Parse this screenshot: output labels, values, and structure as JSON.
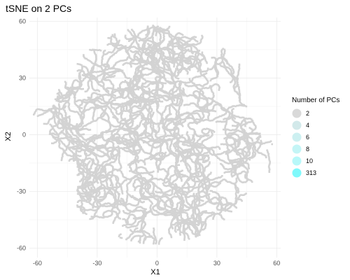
{
  "chart_data": {
    "type": "scatter",
    "title": "tSNE on 2 PCs",
    "xlabel": "X1",
    "ylabel": "X2",
    "xlim": [
      -64,
      62
    ],
    "ylim": [
      -65,
      62
    ],
    "x_ticks": [
      -60,
      -30,
      0,
      30,
      60
    ],
    "y_ticks": [
      60,
      30,
      0,
      -30,
      -60
    ],
    "x_tick_labels": [
      "-60",
      "-30",
      "0",
      "30",
      "60"
    ],
    "y_tick_labels": [
      "60",
      "30",
      "0",
      "-30",
      "-60"
    ],
    "grid": true,
    "legend": {
      "title": "Number of PCs",
      "position": "right",
      "entries": [
        {
          "label": "2",
          "color": "#d9d9d9"
        },
        {
          "label": "4",
          "color": "#d2e9ea"
        },
        {
          "label": "6",
          "color": "#cdf0f1"
        },
        {
          "label": "8",
          "color": "#c4f5f6"
        },
        {
          "label": "10",
          "color": "#b8f8f9"
        },
        {
          "label": "313",
          "color": "#7ff9fb"
        }
      ]
    },
    "point_color": "#d3d3d3",
    "point_series": "2",
    "description_points": "Dense cloud of several thousand grey points forming worm-like clusters"
  }
}
